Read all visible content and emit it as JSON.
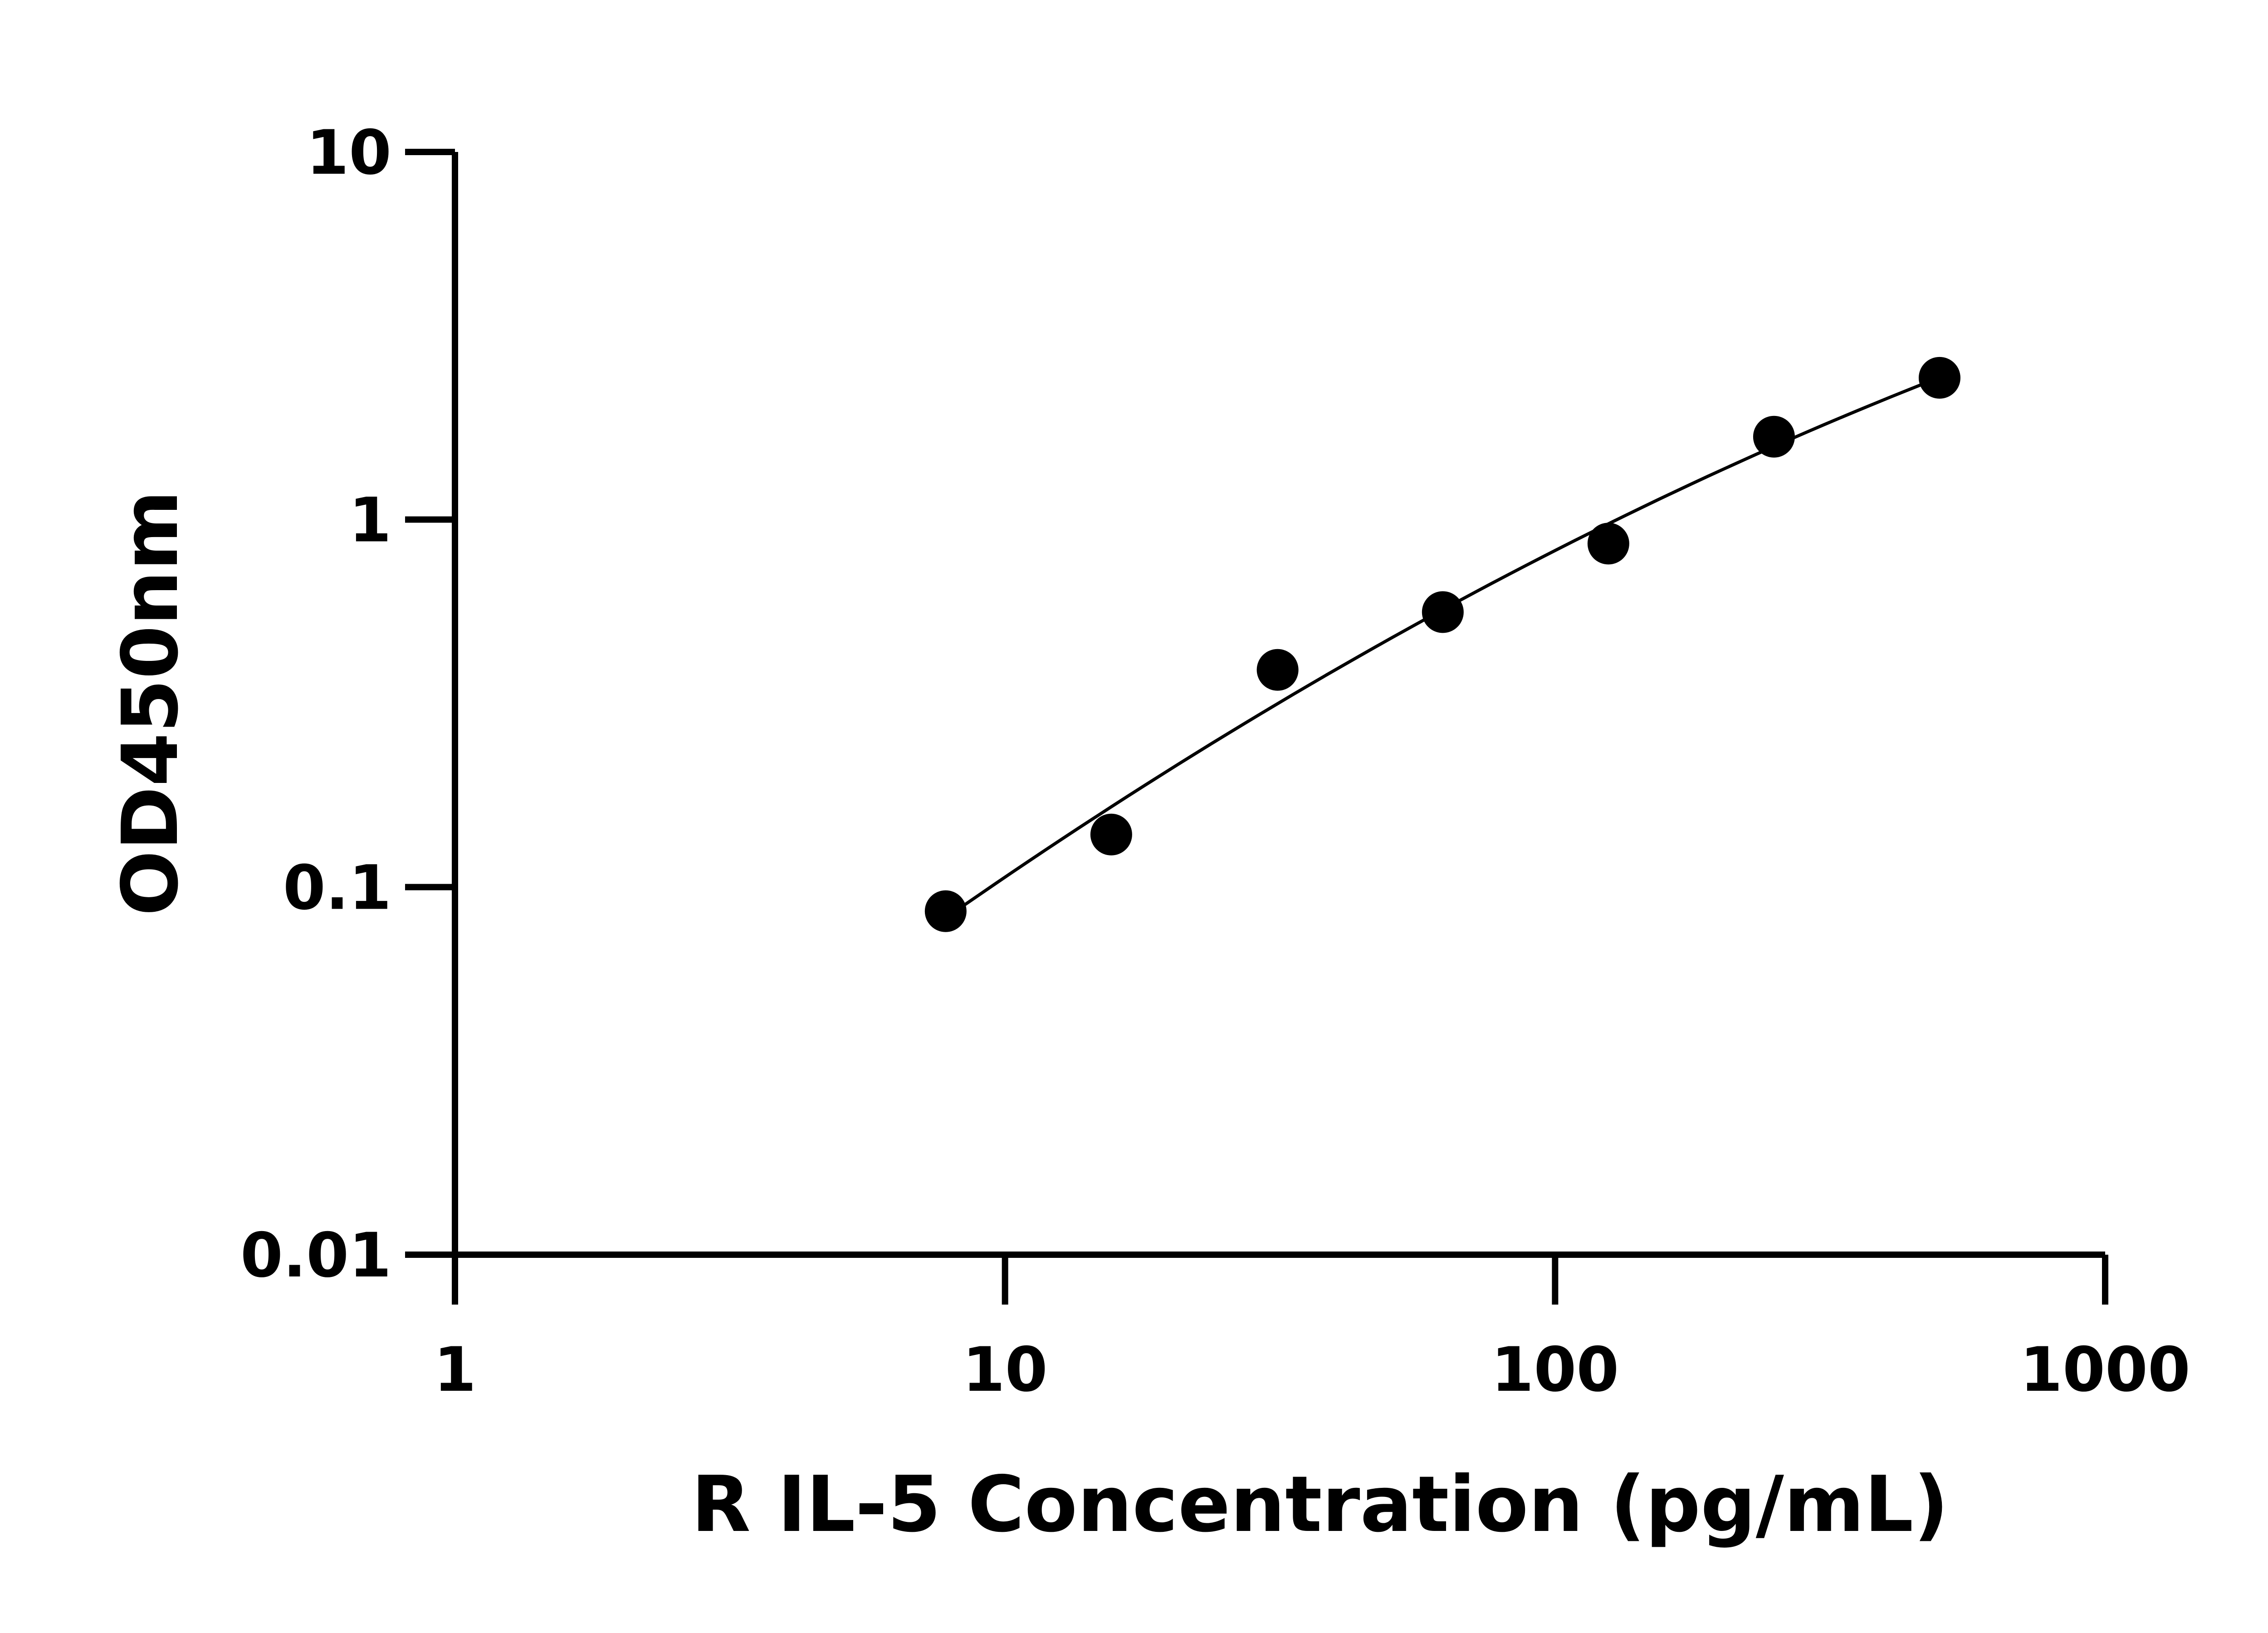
{
  "chart_data": {
    "type": "scatter",
    "title": "",
    "xlabel": "R IL-5 Concentration (pg/mL)",
    "ylabel": "OD450nm",
    "x_scale": "log",
    "y_scale": "log",
    "xlim": [
      1,
      1000
    ],
    "ylim": [
      0.01,
      10
    ],
    "x_ticks": [
      "1",
      "10",
      "100",
      "1000"
    ],
    "y_ticks": [
      "0.01",
      "0.1",
      "1",
      "10"
    ],
    "grid": false,
    "legend": "none",
    "series": [
      {
        "x": [
          7.8,
          15.6,
          31.3,
          62.5,
          125,
          250,
          500
        ],
        "y": [
          0.086,
          0.139,
          0.39,
          0.56,
          0.86,
          1.68,
          2.43
        ],
        "marker": "filled-circle",
        "fit_line": true
      }
    ],
    "colors": {
      "marks": "#000000",
      "axes": "#000000"
    }
  }
}
